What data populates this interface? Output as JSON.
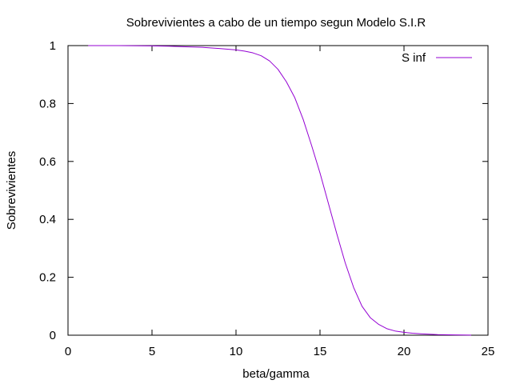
{
  "chart_data": {
    "type": "line",
    "title": "Sobrevivientes a cabo de un tiempo segun Modelo S.I.R",
    "xlabel": "beta/gamma",
    "ylabel": "Sobrevivientes",
    "xlim": [
      0,
      25
    ],
    "ylim": [
      0,
      1
    ],
    "x_ticks": [
      0,
      5,
      10,
      15,
      20,
      25
    ],
    "y_ticks": [
      0,
      0.2,
      0.4,
      0.6,
      0.8,
      1
    ],
    "y_tick_labels": [
      "0",
      "0.2",
      "0.4",
      "0.6",
      "0.8",
      "1"
    ],
    "grid": false,
    "legend": "top-right",
    "series": [
      {
        "name": "S inf",
        "color": "#9400d3",
        "x": [
          1.2,
          3,
          5,
          6,
          7,
          8,
          9,
          10,
          10.5,
          11,
          11.5,
          12,
          12.5,
          13,
          13.5,
          14,
          14.5,
          15,
          15.5,
          16,
          16.5,
          17,
          17.5,
          18,
          18.5,
          19,
          19.5,
          20,
          20.5,
          21,
          22,
          23,
          24
        ],
        "y": [
          1.0,
          1.0,
          0.999,
          0.998,
          0.996,
          0.994,
          0.99,
          0.985,
          0.981,
          0.975,
          0.965,
          0.947,
          0.918,
          0.875,
          0.82,
          0.745,
          0.655,
          0.56,
          0.455,
          0.35,
          0.25,
          0.165,
          0.1,
          0.06,
          0.037,
          0.022,
          0.014,
          0.01,
          0.007,
          0.005,
          0.002,
          0.001,
          0.0005
        ]
      }
    ]
  }
}
